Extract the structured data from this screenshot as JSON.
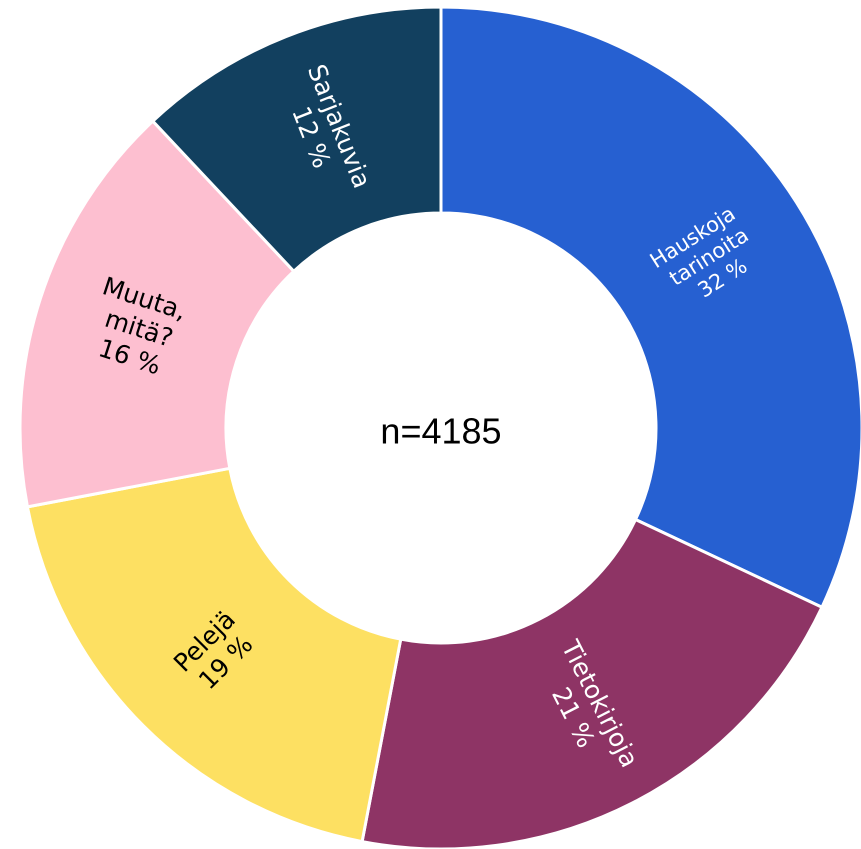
{
  "chart_data": {
    "type": "pie",
    "donut": true,
    "center_label": "n=4185",
    "categories": [
      "Hauskoja tarinoita",
      "Tietokirjoja",
      "Pelejä",
      "Muuta, mitä?",
      "Sarjakuvia"
    ],
    "values": [
      32,
      21,
      19,
      16,
      12
    ],
    "value_labels": [
      "32 %",
      "21 %",
      "19 %",
      "16 %",
      "12 %"
    ],
    "colors": [
      "#2660d1",
      "#8e3465",
      "#fde062",
      "#fdbfd0",
      "#12405f"
    ],
    "label_colors": [
      "#ffffff",
      "#ffffff",
      "#000000",
      "#000000",
      "#ffffff"
    ]
  }
}
